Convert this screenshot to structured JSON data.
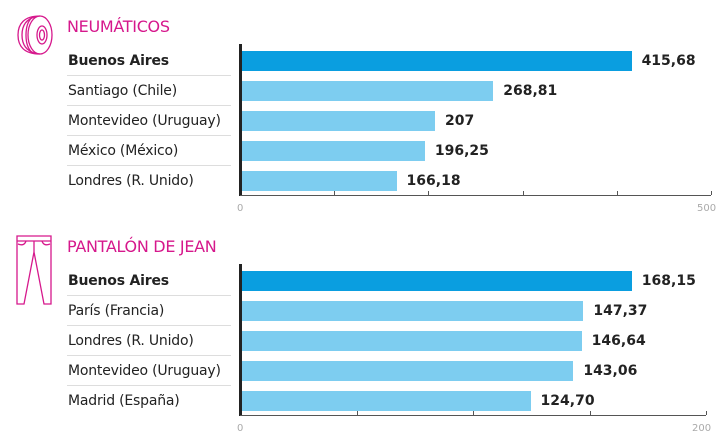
{
  "colors": {
    "title": "#d6188c",
    "highlight_bar": "#0a9ee0",
    "bar": "#7dcdf0",
    "text": "#222222",
    "axis_label": "#aaaaaa"
  },
  "chart_data": [
    {
      "type": "bar",
      "orientation": "horizontal",
      "title": "NEUMÁTICOS",
      "icon": "tire-icon",
      "categories": [
        "Buenos Aires",
        "Santiago (Chile)",
        "Montevideo (Uruguay)",
        "México (México)",
        "Londres (R. Unido)"
      ],
      "values": [
        415.68,
        268.81,
        207,
        196.25,
        166.18
      ],
      "value_labels": [
        "415,68",
        "268,81",
        "207",
        "196,25",
        "166,18"
      ],
      "highlight": "Buenos Aires",
      "xlim": [
        0,
        500
      ],
      "tick_step": 100,
      "tick_labels": [
        "0",
        "500"
      ],
      "grid": false
    },
    {
      "type": "bar",
      "orientation": "horizontal",
      "title": "PANTALÓN DE JEAN",
      "icon": "jeans-icon",
      "categories": [
        "Buenos Aires",
        "París (Francia)",
        "Londres (R. Unido)",
        "Montevideo (Uruguay)",
        "Madrid (España)"
      ],
      "values": [
        168.15,
        147.37,
        146.64,
        143.06,
        124.7
      ],
      "value_labels": [
        "168,15",
        "147,37",
        "146,64",
        "143,06",
        "124,70"
      ],
      "highlight": "Buenos Aires",
      "xlim": [
        0,
        200
      ],
      "tick_step": 50,
      "tick_labels": [
        "0",
        "200"
      ],
      "grid": false
    }
  ]
}
